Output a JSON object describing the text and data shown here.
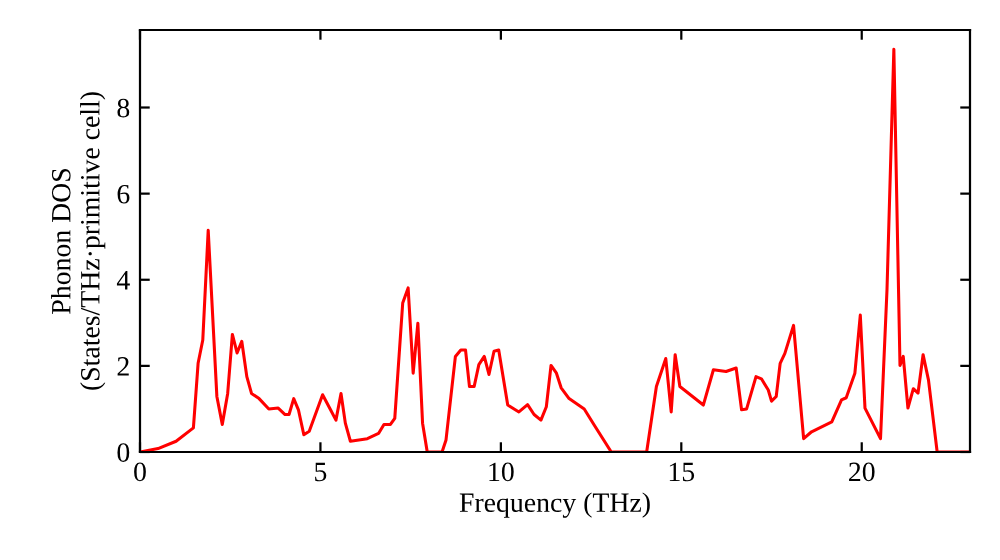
{
  "chart_data": {
    "type": "line",
    "xlabel": "Frequency (THz)",
    "ylabel": "Phonon DOS\n(States/THz·primitive cell)",
    "xlim": [
      0,
      23
    ],
    "ylim": [
      0,
      9.8
    ],
    "xticks": [
      0,
      5,
      10,
      15,
      20
    ],
    "yticks": [
      0,
      2,
      4,
      6,
      8
    ],
    "marker": "none",
    "line_style": "solid",
    "series": [
      {
        "color": "#ff0000",
        "x": [
          0,
          0.5,
          1.0,
          1.48,
          1.61,
          1.74,
          1.89,
          2.13,
          2.28,
          2.43,
          2.56,
          2.69,
          2.82,
          2.96,
          3.09,
          3.3,
          3.57,
          3.83,
          4.02,
          4.13,
          4.26,
          4.39,
          4.54,
          4.69,
          5.06,
          5.28,
          5.43,
          5.57,
          5.69,
          5.83,
          6.3,
          6.61,
          6.76,
          6.94,
          7.06,
          7.28,
          7.43,
          7.57,
          7.7,
          7.83,
          7.96,
          8.37,
          8.48,
          8.74,
          8.89,
          9.02,
          9.13,
          9.26,
          9.39,
          9.54,
          9.67,
          9.81,
          9.94,
          10.19,
          10.5,
          10.74,
          10.92,
          11.11,
          11.26,
          11.39,
          11.54,
          11.67,
          11.89,
          12.31,
          12.59,
          13.06,
          14.04,
          14.31,
          14.57,
          14.72,
          14.83,
          14.96,
          15.61,
          15.89,
          16.24,
          16.52,
          16.67,
          16.81,
          17.07,
          17.22,
          17.41,
          17.5,
          17.63,
          17.74,
          17.87,
          18.11,
          18.39,
          18.61,
          19.17,
          19.44,
          19.57,
          19.81,
          19.96,
          20.09,
          20.52,
          20.7,
          20.89,
          21.06,
          21.15,
          21.28,
          21.43,
          21.56,
          21.7,
          21.85,
          22.09,
          23
        ],
        "values": [
          0,
          0.08,
          0.25,
          0.56,
          2.06,
          2.6,
          5.15,
          1.29,
          0.64,
          1.36,
          2.73,
          2.3,
          2.57,
          1.75,
          1.36,
          1.24,
          1.0,
          1.02,
          0.87,
          0.87,
          1.24,
          0.98,
          0.4,
          0.48,
          1.33,
          0.98,
          0.74,
          1.36,
          0.67,
          0.25,
          0.31,
          0.43,
          0.64,
          0.64,
          0.78,
          3.46,
          3.81,
          1.83,
          2.99,
          0.67,
          0,
          0,
          0.28,
          2.22,
          2.37,
          2.37,
          1.52,
          1.52,
          2.03,
          2.22,
          1.8,
          2.34,
          2.37,
          1.09,
          0.93,
          1.1,
          0.87,
          0.74,
          1.05,
          2.01,
          1.83,
          1.49,
          1.24,
          1.0,
          0.62,
          0,
          0,
          1.52,
          2.17,
          0.93,
          2.26,
          1.52,
          1.09,
          1.91,
          1.87,
          1.95,
          0.98,
          1.0,
          1.75,
          1.7,
          1.44,
          1.18,
          1.29,
          2.06,
          2.29,
          2.94,
          0.31,
          0.47,
          0.7,
          1.21,
          1.26,
          1.83,
          3.18,
          1.02,
          0.31,
          3.77,
          9.35,
          2.01,
          2.22,
          1.02,
          1.47,
          1.37,
          2.26,
          1.67,
          0,
          0
        ]
      }
    ]
  }
}
